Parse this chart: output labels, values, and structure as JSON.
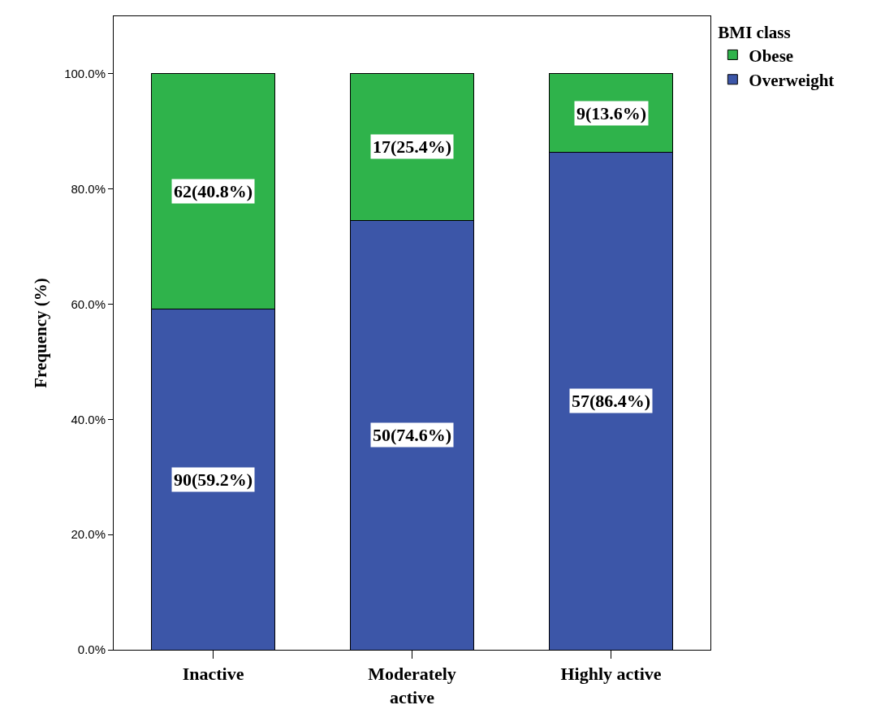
{
  "chart_data": {
    "type": "bar",
    "stacked": true,
    "ylabel": "Frequency (%)",
    "legend_title": "BMI class",
    "legend": "top right",
    "categories": [
      "Inactive",
      "Moderately\nactive",
      "Highly active"
    ],
    "series": [
      {
        "name": "Overweight",
        "color": "#3c56a8",
        "values": [
          59.2,
          74.6,
          86.4
        ],
        "value_labels": [
          "90(59.2%)",
          "50(74.6%)",
          "57(86.4%)"
        ]
      },
      {
        "name": "Obese",
        "color": "#2fb34b",
        "values": [
          40.8,
          25.4,
          13.6
        ],
        "value_labels": [
          "62(40.8%)",
          "17(25.4%)",
          "9(13.6%)"
        ]
      }
    ],
    "ylim": [
      0,
      110
    ],
    "yticks": [
      {
        "value": 0,
        "label": "0.0%"
      },
      {
        "value": 20,
        "label": "20.0%"
      },
      {
        "value": 40,
        "label": "40.0%"
      },
      {
        "value": 60,
        "label": "60.0%"
      },
      {
        "value": 80,
        "label": "80.0%"
      },
      {
        "value": 100,
        "label": "100.0%"
      }
    ]
  }
}
